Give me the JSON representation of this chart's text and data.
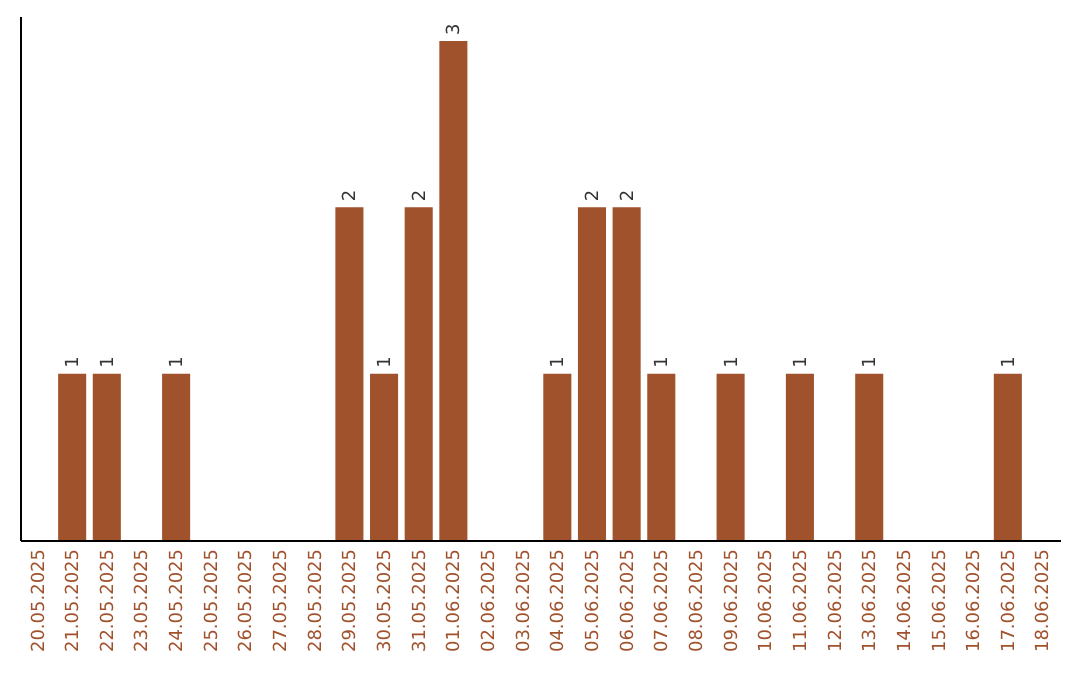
{
  "chart_data": {
    "type": "bar",
    "categories": [
      "20.05.2025",
      "21.05.2025",
      "22.05.2025",
      "23.05.2025",
      "24.05.2025",
      "25.05.2025",
      "26.05.2025",
      "27.05.2025",
      "28.05.2025",
      "29.05.2025",
      "30.05.2025",
      "31.05.2025",
      "01.06.2025",
      "02.06.2025",
      "03.06.2025",
      "04.06.2025",
      "05.06.2025",
      "06.06.2025",
      "07.06.2025",
      "08.06.2025",
      "09.06.2025",
      "10.06.2025",
      "11.06.2025",
      "12.06.2025",
      "13.06.2025",
      "14.06.2025",
      "15.06.2025",
      "16.06.2025",
      "17.06.2025",
      "18.06.2025"
    ],
    "values": [
      0,
      1,
      1,
      0,
      1,
      0,
      0,
      0,
      0,
      2,
      1,
      2,
      3,
      0,
      0,
      1,
      2,
      2,
      1,
      0,
      1,
      0,
      1,
      0,
      1,
      0,
      0,
      0,
      1,
      0
    ],
    "value_labels": [
      null,
      "1",
      "1",
      null,
      "1",
      null,
      null,
      null,
      null,
      "2",
      "1",
      "2",
      "3",
      null,
      null,
      "1",
      "2",
      "2",
      "1",
      null,
      "1",
      null,
      "1",
      null,
      "1",
      null,
      null,
      null,
      "1",
      null
    ],
    "color": "#a0522d",
    "ylim": [
      0,
      3.15
    ],
    "tick_labels": "x",
    "grid": false
  }
}
